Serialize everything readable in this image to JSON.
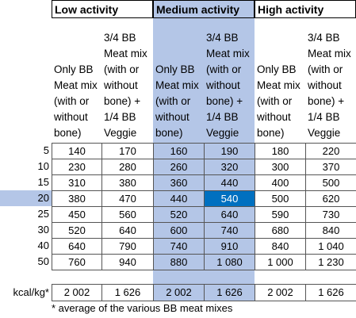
{
  "groups": [
    "Low activity",
    "Medium activity",
    "High activity"
  ],
  "descriptions": [
    "Only BB Meat mix (with or without bone)",
    "3/4 BB Meat mix (with or without bone) + 1/4 BB Veggie",
    "Only BB Meat mix (with or without bone)",
    "3/4 BB Meat mix (with or without bone) + 1/4 BB Veggie",
    "Only BB Meat mix (with or without bone)",
    "3/4 BB Meat mix (with or without bone) + 1/4 BB Veggie"
  ],
  "rows": [
    {
      "label": 5,
      "cells": [
        140,
        170,
        160,
        190,
        180,
        220
      ]
    },
    {
      "label": 10,
      "cells": [
        230,
        280,
        260,
        320,
        300,
        370
      ]
    },
    {
      "label": 15,
      "cells": [
        310,
        380,
        360,
        440,
        400,
        500
      ]
    },
    {
      "label": 20,
      "cells": [
        380,
        470,
        440,
        540,
        500,
        620
      ]
    },
    {
      "label": 25,
      "cells": [
        450,
        560,
        520,
        640,
        590,
        730
      ]
    },
    {
      "label": 30,
      "cells": [
        520,
        640,
        600,
        740,
        680,
        840
      ]
    },
    {
      "label": 40,
      "cells": [
        640,
        790,
        740,
        910,
        840,
        "1 040"
      ]
    },
    {
      "label": 50,
      "cells": [
        760,
        940,
        880,
        "1 080",
        "1 000",
        "1 230"
      ]
    }
  ],
  "kcal": {
    "label": "kcal/kg*",
    "cells": [
      "2 002",
      "1 626",
      "2 002",
      "1 626",
      "2 002",
      "1 626"
    ]
  },
  "footnote": "* average of the various BB meat mixes"
}
